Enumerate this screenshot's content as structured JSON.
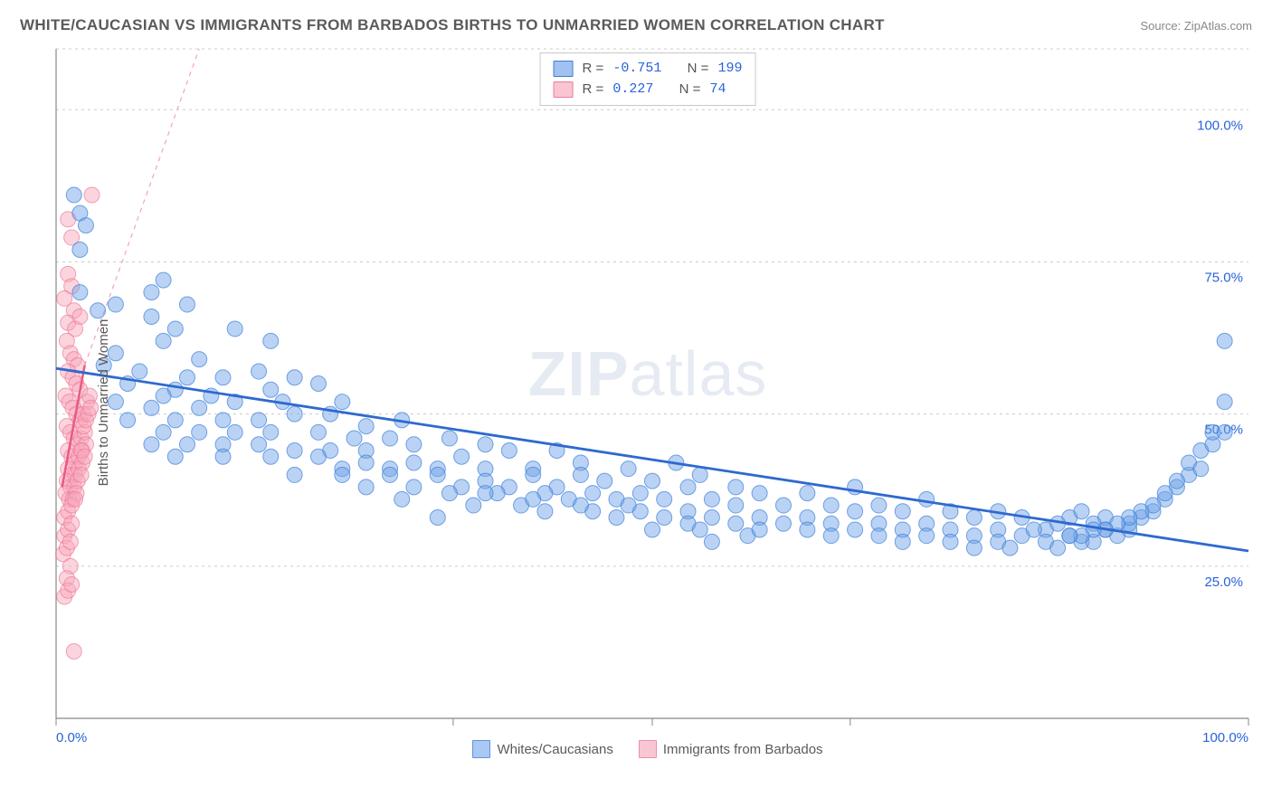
{
  "header": {
    "title": "WHITE/CAUCASIAN VS IMMIGRANTS FROM BARBADOS BIRTHS TO UNMARRIED WOMEN CORRELATION CHART",
    "source": "Source: ZipAtlas.com"
  },
  "watermark": {
    "pre": "ZIP",
    "post": "atlas"
  },
  "chart": {
    "type": "scatter",
    "ylabel": "Births to Unmarried Women",
    "background_color": "#ffffff",
    "grid_color": "#cccccc",
    "axis_color": "#888888",
    "tick_color": "#888888",
    "label_color": "#2962d9",
    "xlim": [
      0,
      100
    ],
    "ylim": [
      0,
      110
    ],
    "x_ticks": [
      0,
      33.3,
      50,
      66.6,
      100
    ],
    "x_tick_labels_shown": {
      "0": "0.0%",
      "100": "100.0%"
    },
    "y_gridlines": [
      25,
      50,
      75,
      100,
      110
    ],
    "y_tick_labels": {
      "25": "25.0%",
      "50": "50.0%",
      "75": "75.0%",
      "100": "100.0%"
    },
    "marker_radius": 8.5,
    "marker_opacity": 0.48,
    "series": [
      {
        "name": "Whites/Caucasians",
        "fill_color": "#6fa3e8",
        "stroke_color": "#3f7fd8",
        "R": "-0.751",
        "N": "199",
        "trend": {
          "x1": 0,
          "y1": 57.5,
          "x2": 100,
          "y2": 27.5,
          "color": "#2e69cf",
          "width": 2.8,
          "dash": "none"
        },
        "points": [
          [
            1.5,
            86
          ],
          [
            2,
            83
          ],
          [
            2.5,
            81
          ],
          [
            2,
            77
          ],
          [
            9,
            72
          ],
          [
            2,
            70
          ],
          [
            8,
            70
          ],
          [
            5,
            68
          ],
          [
            11,
            68
          ],
          [
            3.5,
            67
          ],
          [
            8,
            66
          ],
          [
            10,
            64
          ],
          [
            9,
            62
          ],
          [
            15,
            64
          ],
          [
            5,
            60
          ],
          [
            18,
            62
          ],
          [
            4,
            58
          ],
          [
            12,
            59
          ],
          [
            7,
            57
          ],
          [
            11,
            56
          ],
          [
            14,
            56
          ],
          [
            17,
            57
          ],
          [
            20,
            56
          ],
          [
            6,
            55
          ],
          [
            10,
            54
          ],
          [
            9,
            53
          ],
          [
            13,
            53
          ],
          [
            18,
            54
          ],
          [
            22,
            55
          ],
          [
            5,
            52
          ],
          [
            8,
            51
          ],
          [
            12,
            51
          ],
          [
            15,
            52
          ],
          [
            19,
            52
          ],
          [
            24,
            52
          ],
          [
            6,
            49
          ],
          [
            10,
            49
          ],
          [
            14,
            49
          ],
          [
            17,
            49
          ],
          [
            20,
            50
          ],
          [
            23,
            50
          ],
          [
            26,
            48
          ],
          [
            29,
            49
          ],
          [
            9,
            47
          ],
          [
            12,
            47
          ],
          [
            15,
            47
          ],
          [
            18,
            47
          ],
          [
            22,
            47
          ],
          [
            25,
            46
          ],
          [
            28,
            46
          ],
          [
            8,
            45
          ],
          [
            11,
            45
          ],
          [
            14,
            45
          ],
          [
            17,
            45
          ],
          [
            20,
            44
          ],
          [
            23,
            44
          ],
          [
            26,
            44
          ],
          [
            30,
            45
          ],
          [
            33,
            46
          ],
          [
            36,
            45
          ],
          [
            10,
            43
          ],
          [
            14,
            43
          ],
          [
            18,
            43
          ],
          [
            22,
            43
          ],
          [
            26,
            42
          ],
          [
            30,
            42
          ],
          [
            34,
            43
          ],
          [
            38,
            44
          ],
          [
            42,
            44
          ],
          [
            24,
            41
          ],
          [
            28,
            41
          ],
          [
            32,
            41
          ],
          [
            36,
            41
          ],
          [
            40,
            41
          ],
          [
            44,
            42
          ],
          [
            32,
            33
          ],
          [
            20,
            40
          ],
          [
            24,
            40
          ],
          [
            28,
            40
          ],
          [
            32,
            40
          ],
          [
            36,
            39
          ],
          [
            40,
            40
          ],
          [
            44,
            40
          ],
          [
            48,
            41
          ],
          [
            52,
            42
          ],
          [
            26,
            38
          ],
          [
            30,
            38
          ],
          [
            34,
            38
          ],
          [
            38,
            38
          ],
          [
            42,
            38
          ],
          [
            46,
            39
          ],
          [
            50,
            39
          ],
          [
            54,
            40
          ],
          [
            29,
            36
          ],
          [
            33,
            37
          ],
          [
            37,
            37
          ],
          [
            41,
            37
          ],
          [
            45,
            37
          ],
          [
            49,
            37
          ],
          [
            53,
            38
          ],
          [
            57,
            38
          ],
          [
            35,
            35
          ],
          [
            39,
            35
          ],
          [
            43,
            36
          ],
          [
            47,
            36
          ],
          [
            51,
            36
          ],
          [
            55,
            36
          ],
          [
            59,
            37
          ],
          [
            63,
            37
          ],
          [
            67,
            38
          ],
          [
            41,
            34
          ],
          [
            45,
            34
          ],
          [
            49,
            34
          ],
          [
            53,
            34
          ],
          [
            57,
            35
          ],
          [
            61,
            35
          ],
          [
            65,
            35
          ],
          [
            69,
            35
          ],
          [
            73,
            36
          ],
          [
            47,
            33
          ],
          [
            51,
            33
          ],
          [
            55,
            33
          ],
          [
            59,
            33
          ],
          [
            63,
            33
          ],
          [
            67,
            34
          ],
          [
            71,
            34
          ],
          [
            75,
            34
          ],
          [
            79,
            34
          ],
          [
            53,
            32
          ],
          [
            57,
            32
          ],
          [
            61,
            32
          ],
          [
            65,
            32
          ],
          [
            69,
            32
          ],
          [
            73,
            32
          ],
          [
            77,
            33
          ],
          [
            81,
            33
          ],
          [
            85,
            33
          ],
          [
            58,
            30
          ],
          [
            88,
            33
          ],
          [
            59,
            31
          ],
          [
            63,
            31
          ],
          [
            67,
            31
          ],
          [
            71,
            31
          ],
          [
            75,
            31
          ],
          [
            79,
            31
          ],
          [
            83,
            31
          ],
          [
            87,
            32
          ],
          [
            90,
            32
          ],
          [
            65,
            30
          ],
          [
            69,
            30
          ],
          [
            73,
            30
          ],
          [
            77,
            30
          ],
          [
            81,
            30
          ],
          [
            85,
            30
          ],
          [
            88,
            31
          ],
          [
            91,
            33
          ],
          [
            71,
            29
          ],
          [
            75,
            29
          ],
          [
            79,
            29
          ],
          [
            83,
            29
          ],
          [
            86,
            29
          ],
          [
            89,
            30
          ],
          [
            92,
            34
          ],
          [
            55,
            29
          ],
          [
            77,
            28
          ],
          [
            80,
            28
          ],
          [
            84,
            28
          ],
          [
            87,
            29
          ],
          [
            90,
            31
          ],
          [
            93,
            36
          ],
          [
            94,
            38
          ],
          [
            95,
            40
          ],
          [
            95,
            42
          ],
          [
            96,
            44
          ],
          [
            97,
            45
          ],
          [
            97,
            47
          ],
          [
            98,
            47
          ],
          [
            98,
            62
          ],
          [
            98,
            52
          ],
          [
            96,
            41
          ],
          [
            94,
            39
          ],
          [
            93,
            37
          ],
          [
            92,
            35
          ],
          [
            91,
            34
          ],
          [
            90,
            33
          ],
          [
            89,
            32
          ],
          [
            88,
            31
          ],
          [
            87,
            31
          ],
          [
            86,
            30
          ],
          [
            85,
            30
          ],
          [
            50,
            31
          ],
          [
            54,
            31
          ],
          [
            44,
            35
          ],
          [
            48,
            35
          ],
          [
            40,
            36
          ],
          [
            36,
            37
          ],
          [
            86,
            34
          ],
          [
            84,
            32
          ],
          [
            82,
            31
          ]
        ]
      },
      {
        "name": "Immigrants from Barbados",
        "fill_color": "#f6a8bb",
        "stroke_color": "#ef7a99",
        "R": "0.227",
        "N": "74",
        "trend": {
          "x1": 0.5,
          "y1": 38,
          "x2": 2.4,
          "y2": 58,
          "color": "#e85a82",
          "width": 2.5,
          "dash": "none"
        },
        "trend_ext": {
          "x1": 2.4,
          "y1": 58,
          "x2": 12,
          "y2": 110,
          "color": "#f3a3b8",
          "width": 1.2,
          "dash": "5,5"
        },
        "points": [
          [
            3,
            86
          ],
          [
            1,
            82
          ],
          [
            1.3,
            79
          ],
          [
            1,
            73
          ],
          [
            1.3,
            71
          ],
          [
            0.7,
            69
          ],
          [
            1.5,
            67
          ],
          [
            1,
            65
          ],
          [
            1.6,
            64
          ],
          [
            2,
            66
          ],
          [
            0.9,
            62
          ],
          [
            1.2,
            60
          ],
          [
            1.5,
            59
          ],
          [
            1.8,
            58
          ],
          [
            1,
            57
          ],
          [
            1.4,
            56
          ],
          [
            1.7,
            55
          ],
          [
            2,
            54
          ],
          [
            0.8,
            53
          ],
          [
            1.1,
            52
          ],
          [
            1.4,
            51
          ],
          [
            1.7,
            50
          ],
          [
            2,
            49
          ],
          [
            2.3,
            50
          ],
          [
            0.9,
            48
          ],
          [
            1.2,
            47
          ],
          [
            1.5,
            46
          ],
          [
            1.8,
            45
          ],
          [
            2.1,
            46
          ],
          [
            2.4,
            47
          ],
          [
            1,
            44
          ],
          [
            1.3,
            43
          ],
          [
            1.6,
            42
          ],
          [
            1.9,
            43
          ],
          [
            2.2,
            44
          ],
          [
            2.5,
            45
          ],
          [
            1,
            41
          ],
          [
            1.3,
            40
          ],
          [
            1.6,
            40
          ],
          [
            1.9,
            41
          ],
          [
            2.2,
            42
          ],
          [
            0.9,
            39
          ],
          [
            1.2,
            38
          ],
          [
            1.5,
            38
          ],
          [
            1.8,
            39
          ],
          [
            2.1,
            40
          ],
          [
            0.8,
            37
          ],
          [
            1.1,
            36
          ],
          [
            1.4,
            36
          ],
          [
            1.7,
            37
          ],
          [
            0.7,
            33
          ],
          [
            1,
            34
          ],
          [
            1.3,
            35
          ],
          [
            1.6,
            36
          ],
          [
            0.7,
            30
          ],
          [
            1,
            31
          ],
          [
            1.3,
            32
          ],
          [
            0.6,
            27
          ],
          [
            0.9,
            28
          ],
          [
            1.2,
            29
          ],
          [
            1.2,
            25
          ],
          [
            0.9,
            23
          ],
          [
            0.7,
            20
          ],
          [
            1,
            21
          ],
          [
            1.3,
            22
          ],
          [
            2.6,
            52
          ],
          [
            2.8,
            53
          ],
          [
            1.5,
            11
          ],
          [
            2.3,
            48
          ],
          [
            2.5,
            49
          ],
          [
            2.7,
            50
          ],
          [
            2.9,
            51
          ],
          [
            2.1,
            44
          ],
          [
            2.4,
            43
          ]
        ]
      }
    ],
    "bottom_legend": [
      {
        "label": "Whites/Caucasians",
        "fill": "#a9c8f2",
        "stroke": "#6094df"
      },
      {
        "label": "Immigrants from Barbados",
        "fill": "#f9c7d4",
        "stroke": "#ef8fa9"
      }
    ]
  }
}
